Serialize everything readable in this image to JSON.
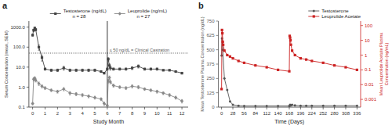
{
  "chart_data": [
    {
      "type": "line",
      "title": "a",
      "xlabel": "Study Month",
      "ylabel": "Serum Concentration (mean, SEM)",
      "x": [
        0,
        0.08,
        0.17,
        0.25,
        0.5,
        0.75,
        1,
        1.5,
        2,
        2.5,
        3,
        3.5,
        4,
        4.5,
        5,
        5.5,
        5.75,
        6,
        6.08,
        6.17,
        6.25,
        6.5,
        7,
        7.5,
        8,
        8.5,
        9,
        9.5,
        10,
        10.5,
        11,
        11.5,
        12
      ],
      "xlim": [
        -0.3,
        12.5
      ],
      "xticks": [
        0,
        1,
        2,
        3,
        4,
        5,
        6,
        7,
        8,
        9,
        10,
        11,
        12
      ],
      "ylim": [
        0.1,
        2000
      ],
      "yticks": [
        0.1,
        {
          "value": 1.0,
          "label": "1.0"
        },
        {
          "value": 10.0,
          "label": "10.0"
        },
        {
          "value": 100.0,
          "label": "100.0"
        },
        {
          "value": 1000.0,
          "label": "1000.0"
        }
      ],
      "log": "y",
      "grid": false,
      "legend": "top",
      "series": [
        {
          "name": "Testosterone (ng/dL)\n       n = 28",
          "color": "#444444",
          "marker": "square",
          "values": [
            400,
            700,
            900,
            750,
            100,
            30,
            8,
            7,
            7,
            9,
            7,
            7,
            7,
            7,
            7,
            6,
            5,
            8,
            25,
            12,
            9,
            8,
            8,
            8,
            9,
            11,
            8,
            8,
            8,
            7,
            7,
            6,
            5
          ],
          "error": [
            50,
            100,
            100,
            100,
            30,
            10,
            1,
            1,
            1,
            2,
            1,
            1,
            1,
            1,
            1,
            0.5,
            0.5,
            1,
            5,
            3,
            2,
            1,
            1,
            1,
            1.5,
            2,
            1,
            1,
            1,
            0.5,
            0.5,
            0.5,
            0.5
          ]
        },
        {
          "name": "Leuprolide (ng/mL)\n       n = 27",
          "color": "#888888",
          "marker": "diamond",
          "values": [
            0.15,
            2.5,
            2.8,
            2.2,
            1.5,
            1.1,
            0.9,
            0.7,
            0.6,
            0.8,
            0.5,
            0.45,
            0.4,
            0.35,
            0.3,
            0.25,
            0.15,
            0.12,
            2.0,
            3.0,
            1.8,
            1.2,
            1.0,
            0.9,
            1.1,
            1.0,
            0.8,
            0.7,
            0.6,
            0.5,
            0.4,
            0.3,
            0.2
          ],
          "error": [
            0.02,
            0.5,
            0.5,
            0.4,
            0.3,
            0.2,
            0.15,
            0.1,
            0.1,
            0.15,
            0.1,
            0.08,
            0.07,
            0.06,
            0.05,
            0.04,
            0.03,
            0.02,
            0.4,
            0.6,
            0.35,
            0.2,
            0.15,
            0.15,
            0.2,
            0.18,
            0.12,
            0.1,
            0.1,
            0.08,
            0.07,
            0.05,
            0.04
          ]
        }
      ],
      "annotations": [
        {
          "type": "hline",
          "y": 50,
          "text": "≤ 50 ng/dL = Clinical Castration",
          "color": "#555555",
          "line_style": "dotted"
        },
        {
          "type": "vline",
          "x": 6,
          "color": "black"
        }
      ]
    },
    {
      "type": "line",
      "title": "b",
      "xlabel": "Time (Days)",
      "ylabel": "Mean Testosterone Plasma Concentration (ng/dL)",
      "y2label": "Mean Leuprolide Acetate Plasma\nConcentration (ng/mL)",
      "xlim": [
        -8,
        345
      ],
      "xticks": [
        0,
        28,
        56,
        84,
        112,
        140,
        168,
        196,
        224,
        252,
        280,
        308,
        336
      ],
      "ylim": [
        0,
        750
      ],
      "yticks": [
        0,
        125,
        250,
        375,
        500,
        625,
        750
      ],
      "y2lim": [
        0.0003,
        200
      ],
      "y2ticks": [
        0.001,
        0.01,
        0.1,
        1,
        10,
        100
      ],
      "log": "y2",
      "grid": false,
      "legend": "upper right",
      "series": [
        {
          "name": "Testosterone",
          "color": "#555555",
          "marker": "circle",
          "x": [
            0,
            1,
            3,
            7,
            14,
            21,
            28,
            42,
            56,
            84,
            112,
            140,
            168,
            169,
            170,
            172,
            175,
            182,
            196,
            210,
            224,
            252,
            280,
            308,
            336
          ],
          "values": [
            450,
            600,
            500,
            250,
            150,
            50,
            20,
            12,
            10,
            10,
            10,
            10,
            10,
            12,
            20,
            15,
            20,
            15,
            12,
            12,
            12,
            12,
            12,
            12,
            12
          ]
        },
        {
          "name": "Leuprolide Acetate",
          "color": "#cc2222",
          "marker": "square",
          "axis": "y2",
          "x": [
            0,
            1,
            2,
            3,
            4,
            7,
            14,
            21,
            28,
            42,
            56,
            84,
            112,
            140,
            168,
            169,
            170,
            171,
            172,
            175,
            182,
            196,
            210,
            224,
            252,
            280,
            308,
            336
          ],
          "values": [
            0.005,
            50,
            30,
            8,
            5,
            2,
            1,
            0.8,
            0.6,
            0.4,
            0.3,
            0.2,
            0.15,
            0.1,
            0.08,
            20,
            15,
            10,
            5,
            2,
            1,
            0.6,
            0.5,
            0.4,
            0.3,
            0.2,
            0.15,
            0.1
          ]
        }
      ]
    }
  ]
}
